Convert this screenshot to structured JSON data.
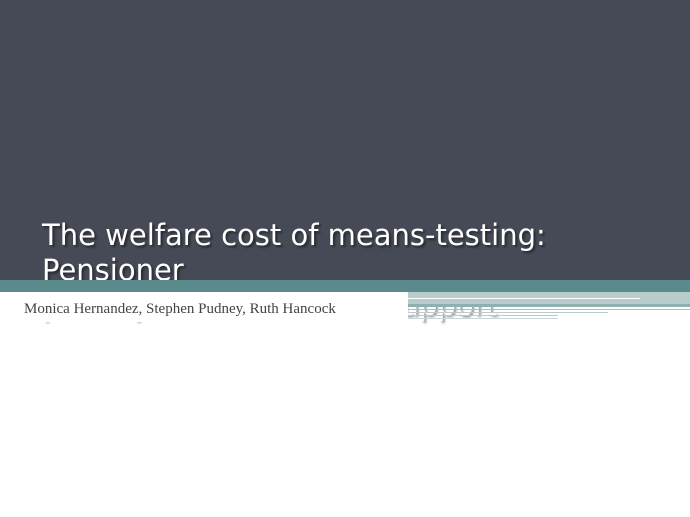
{
  "slide": {
    "title": "The welfare cost of means-testing: Pensioner\nparticipation in income support",
    "authors": "Monica Hernandez, Stephen Pudney, Ruth Hancock"
  },
  "colors": {
    "title_background": "#464a56",
    "accent_teal": "#5b8a8c",
    "accent_pale": "#b9cccc",
    "title_text": "#ffffff",
    "author_text": "#444444"
  }
}
